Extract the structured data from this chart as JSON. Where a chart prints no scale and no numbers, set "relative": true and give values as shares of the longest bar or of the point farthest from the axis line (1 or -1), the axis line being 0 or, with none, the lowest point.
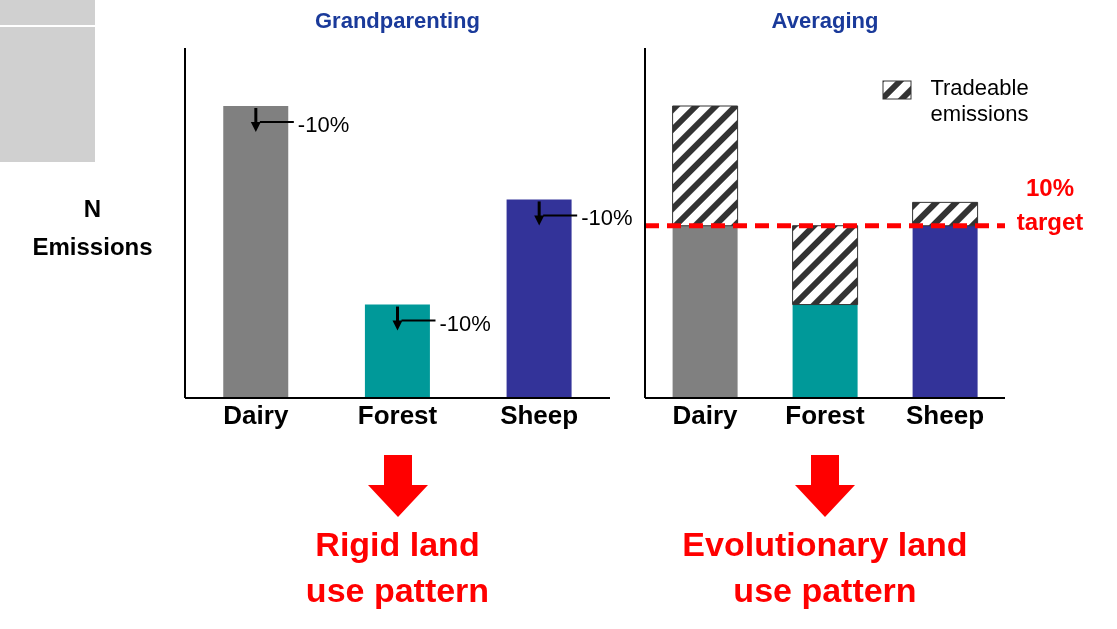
{
  "chart_data": [
    {
      "type": "bar",
      "title": "Grandparenting",
      "ylabel": "N Emissions",
      "categories": [
        "Dairy",
        "Forest",
        "Sheep"
      ],
      "relative": true,
      "values": [
        1,
        0.32,
        0.68
      ],
      "colors": [
        "#808080",
        "#009999",
        "#333399"
      ],
      "tick_labels": "x",
      "annotations": [
        {
          "text": "-10%",
          "x": "Dairy",
          "y": 1
        },
        {
          "text": "-10%",
          "x": "Forest",
          "y": 0.32
        },
        {
          "text": "-10%",
          "x": "Sheep",
          "y": 0.68
        },
        "Rigid land use pattern"
      ]
    },
    {
      "type": "bar",
      "title": "Averaging",
      "categories": [
        "Dairy",
        "Forest",
        "Sheep"
      ],
      "relative": true,
      "stacked": true,
      "tick_labels": "x",
      "legend": "top right",
      "series": [
        {
          "colors": [
            "#808080",
            "#009999",
            "#333399"
          ],
          "values": [
            0.59,
            0.32,
            0.59
          ]
        },
        {
          "name": "Tradeable emissions",
          "color": "#333333",
          "values": [
            0.41,
            0.27,
            0.08
          ]
        }
      ],
      "ref_lines": [
        {
          "axis": "y",
          "value": 0.59,
          "label": "10% target",
          "color": "#ff0000",
          "line_style": "dashed"
        }
      ],
      "annotations": [
        "Evolutionary land use pattern"
      ]
    }
  ]
}
